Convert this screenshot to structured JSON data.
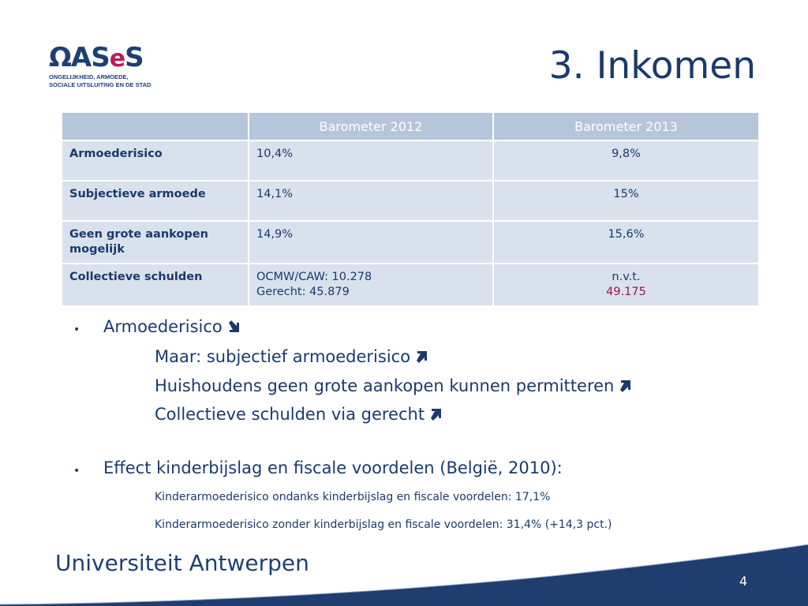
{
  "logo": {
    "word_a": "ΩAS",
    "word_e": "e",
    "word_s": "S",
    "subtitle_line1": "ONGELIJKHEID, ARMOEDE,",
    "subtitle_line2": "SOCIALE UITSLUITING EN DE STAD"
  },
  "slide": {
    "title": "3. Inkomen",
    "page_number": "4"
  },
  "table": {
    "headers": [
      "",
      "Barometer 2012",
      "Barometer 2013"
    ],
    "rows": [
      {
        "label": "Armoederisico",
        "label_color": "#1b8a1b",
        "v2012": "10,4%",
        "v2013": "9,8%",
        "v2013_color": "#1b8a1b"
      },
      {
        "label": "Subjectieve armoede",
        "label_color": "#a0154b",
        "v2012": "14,1%",
        "v2013": "15%",
        "v2013_color": "#a0154b"
      },
      {
        "label": "Geen grote aankopen mogelijk",
        "label_color": "#a0154b",
        "v2012": "14,9%",
        "v2013": "15,6%",
        "v2013_color": "#a0154b"
      },
      {
        "label": "Collectieve schulden",
        "label_color": "#a0154b",
        "v2012_line1": "OCMW/CAW: 10.278",
        "v2012_line2": "Gerecht: 45.879",
        "v2013_line1": "n.v.t.",
        "v2013_line2": "49.175",
        "v2013_color": "#a0154b"
      }
    ]
  },
  "bullets": {
    "b1": {
      "text": "Armoederisico",
      "arrow": "arrow-down-right-icon"
    },
    "b1_sub": [
      {
        "text": "Maar: subjectief armoederisico",
        "arrow": "arrow-up-right-icon"
      },
      {
        "text": "Huishoudens geen grote aankopen kunnen permitteren",
        "arrow": "arrow-up-right-icon"
      },
      {
        "text": "Collectieve schulden via gerecht",
        "arrow": "arrow-up-right-icon"
      }
    ],
    "b2": {
      "text": "Effect kinderbijslag en fiscale voordelen (België, 2010):"
    },
    "b2_sub": [
      {
        "text": "Kinderarmoederisico ondanks kinderbijslag en fiscale voordelen: 17,1%"
      },
      {
        "text": "Kinderarmoederisico zonder kinderbijslag en fiscale voordelen:  31,4% (+14,3 pct.)"
      }
    ]
  },
  "footer": {
    "uni_part1": "Universiteit",
    "uni_part2": "Antwerpen"
  },
  "colors": {
    "navy": "#1a3a6b",
    "green": "#1b8a1b",
    "crimson": "#a0154b",
    "table_header": "#b6c6da",
    "table_cell": "#d9e1ec",
    "footer_band": "#1f3d6e"
  }
}
